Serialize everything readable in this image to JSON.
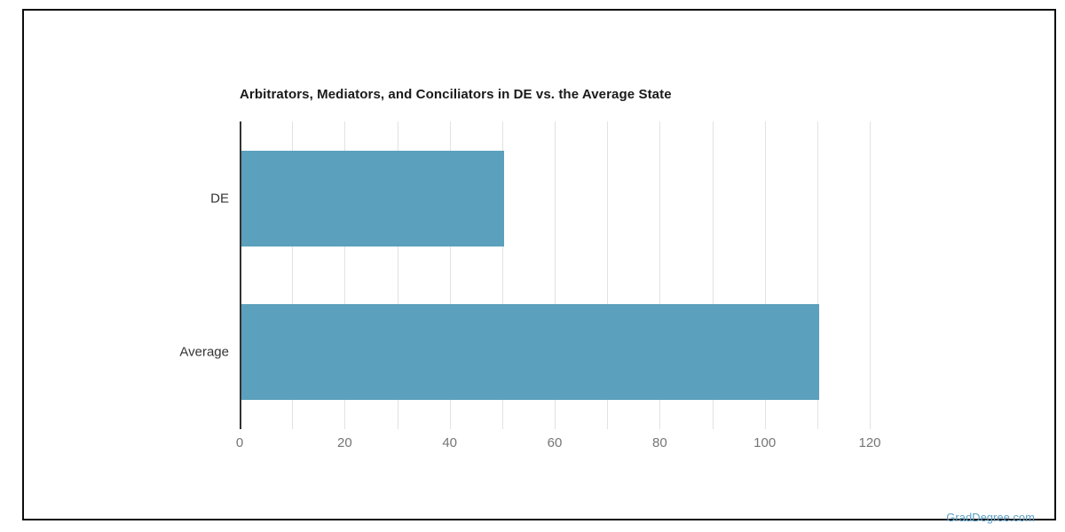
{
  "page": {
    "background": "#ffffff",
    "frame_border_color": "#0d0d0d",
    "watermark": {
      "text": "GradDegree.com",
      "color": "#5a9ec6"
    }
  },
  "chart_data": {
    "type": "bar",
    "orientation": "horizontal",
    "title": "Arbitrators, Mediators, and Conciliators in DE vs. the Average State",
    "categories": [
      "DE",
      "Average"
    ],
    "values": [
      50,
      110
    ],
    "xlabel": "",
    "ylabel": "",
    "xlim": [
      0,
      120
    ],
    "x_major_ticks": [
      0,
      20,
      40,
      60,
      80,
      100,
      120
    ],
    "x_grid_step": 10,
    "grid": true,
    "legend": false,
    "bar_color": "#5ba0bc",
    "gridline_color": "#e2e2e2",
    "axis_line_color": "#333333",
    "tick_label_color": "#757575",
    "category_label_color": "#333333",
    "title_color": "#1a1a1a"
  }
}
